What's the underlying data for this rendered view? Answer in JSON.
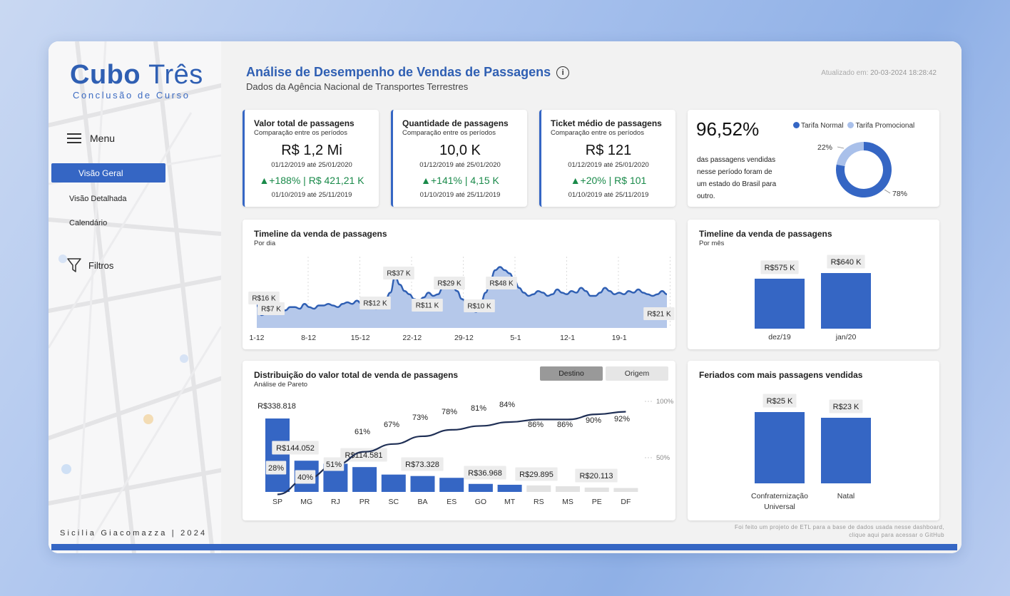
{
  "app": {
    "logo_bold": "Cubo",
    "logo_thin": "Três",
    "logo_subtitle": "Conclusão de Curso",
    "signature": "Sicilia Giacomazza | 2024"
  },
  "sidebar": {
    "menu_label": "Menu",
    "items": [
      {
        "label": "Visão Geral",
        "active": true
      },
      {
        "label": "Visão Detalhada",
        "active": false
      },
      {
        "label": "Calendário",
        "active": false
      }
    ],
    "filters_label": "Filtros"
  },
  "header": {
    "title": "Análise de Desempenho de Vendas de Passagens",
    "info_icon": "i",
    "subtitle": "Dados da Agência Nacional de Transportes Terrestres",
    "updated_prefix": "Atualizado em: ",
    "updated_value": "20-03-2024 18:28:42"
  },
  "kpis": [
    {
      "title": "Valor total de passagens",
      "subtitle": "Comparação entre os períodos",
      "value": "R$ 1,2 Mi",
      "period": "01/12/2019 até 25/01/2020",
      "delta": "▲+188% | R$ 421,21 K",
      "period2": "01/10/2019 até 25/11/2019"
    },
    {
      "title": "Quantidade de passagens",
      "subtitle": "Comparação entre os períodos",
      "value": "10,0 K",
      "period": "01/12/2019 até 25/01/2020",
      "delta": "▲+141% | 4,15 K",
      "period2": "01/10/2019 até 25/11/2019"
    },
    {
      "title": "Ticket médio de passagens",
      "subtitle": "Comparação entre os períodos",
      "value": "R$ 121",
      "period": "01/12/2019 até 25/01/2020",
      "delta": "▲+20% | R$ 101",
      "period2": "01/10/2019 até 25/11/2019"
    }
  ],
  "donut_card": {
    "big_value": "96,52%",
    "text": "das passagens vendidas nesse período foram de um estado do Brasil para outro.",
    "legend": [
      "Tarifa Normal",
      "Tarifa Promocional"
    ],
    "colors": {
      "normal": "#3566c4",
      "promo": "#a9c0ea"
    }
  },
  "timeline_daily": {
    "title": "Timeline da venda de passagens",
    "subtitle": "Por dia"
  },
  "timeline_monthly": {
    "title": "Timeline da venda de passagens",
    "subtitle": "Por mês"
  },
  "pareto": {
    "title": "Distribuição do valor total de venda de passagens",
    "subtitle": "Análise de Pareto",
    "toggle": {
      "destino": "Destino",
      "origem": "Origem",
      "active": "Destino"
    }
  },
  "holidays": {
    "title": "Feriados com mais passagens vendidas"
  },
  "footer": {
    "line1": "Foi feito um projeto de ETL para a base de dados usada nesse dashboard,",
    "line2": "clique aqui para acessar o GitHub"
  },
  "chart_data": [
    {
      "id": "donut",
      "type": "pie",
      "categories": [
        "Tarifa Normal",
        "Tarifa Promocional"
      ],
      "values": [
        78,
        22
      ],
      "labels": [
        "78%",
        "22%"
      ]
    },
    {
      "id": "daily",
      "type": "area",
      "x_ticks": [
        "1-12",
        "8-12",
        "15-12",
        "22-12",
        "29-12",
        "5-1",
        "12-1",
        "19-1"
      ],
      "y": [
        14,
        8,
        9,
        10,
        12,
        10,
        11,
        13,
        13,
        12,
        15,
        13,
        12,
        14,
        14,
        15,
        14,
        13,
        15,
        16,
        15,
        17,
        15,
        14,
        13,
        12,
        15,
        18,
        22,
        32,
        27,
        23,
        21,
        18,
        17,
        19,
        22,
        20,
        21,
        25,
        28,
        26,
        23,
        18,
        16,
        11,
        10,
        16,
        22,
        30,
        36,
        38,
        36,
        34,
        30,
        25,
        22,
        20,
        21,
        23,
        22,
        20,
        21,
        24,
        22,
        21,
        23,
        22,
        25,
        23,
        20,
        20,
        22,
        25,
        23,
        21,
        22,
        21,
        23,
        22,
        24,
        22,
        21,
        20,
        21,
        23,
        21
      ],
      "annotations": [
        "R$16 K",
        "R$7 K",
        "R$12 K",
        "R$37 K",
        "R$11 K",
        "R$29 K",
        "R$10 K",
        "R$48 K",
        "R$21 K"
      ]
    },
    {
      "id": "monthly",
      "type": "bar",
      "categories": [
        "dez/19",
        "jan/20"
      ],
      "values": [
        575,
        640
      ],
      "labels": [
        "R$575 K",
        "R$640 K"
      ]
    },
    {
      "id": "pareto",
      "type": "bar",
      "categories": [
        "SP",
        "MG",
        "RJ",
        "PR",
        "SC",
        "BA",
        "ES",
        "GO",
        "MT",
        "RS",
        "MS",
        "PE",
        "DF"
      ],
      "values": [
        338818,
        144052,
        130000,
        114581,
        80000,
        73328,
        65000,
        36968,
        33000,
        29895,
        26000,
        20113,
        18000
      ],
      "value_labels": [
        "R$338.818",
        "R$144.052",
        "",
        "R$114.581",
        "",
        "R$73.328",
        "",
        "R$36.968",
        "",
        "R$29.895",
        "",
        "R$20.113",
        ""
      ],
      "cumulative": [
        28,
        40,
        51,
        61,
        67,
        73,
        78,
        81,
        84,
        86,
        86,
        90,
        92
      ],
      "cumulative_labels": [
        "28%",
        "40%",
        "51%",
        "61%",
        "67%",
        "73%",
        "78%",
        "81%",
        "84%",
        "86%",
        "86%",
        "90%",
        "92%"
      ],
      "highlight_count": 9,
      "y2_ticks": [
        "100%",
        "50%"
      ]
    },
    {
      "id": "holidays",
      "type": "bar",
      "categories": [
        "Confraternização Universal",
        "Natal"
      ],
      "category_lines": [
        [
          "Confraternização",
          "Universal"
        ],
        [
          "Natal"
        ]
      ],
      "values": [
        25,
        23
      ],
      "labels": [
        "R$25 K",
        "R$23 K"
      ]
    }
  ]
}
